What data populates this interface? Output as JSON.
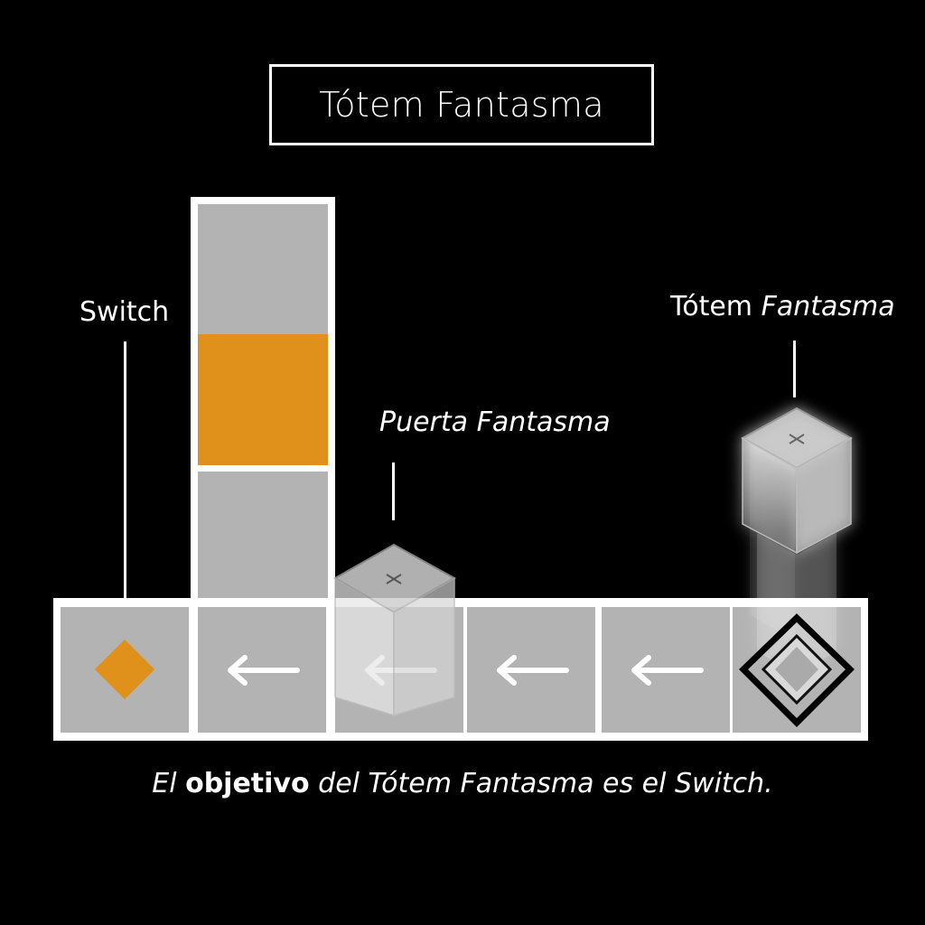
{
  "title": "Tótem Fantasma",
  "labels": {
    "switch": "Switch",
    "puerta_prefix": "",
    "puerta_italic": "Puerta Fantasma",
    "totem_normal": "Tótem ",
    "totem_italic": "Fantasma"
  },
  "caption": {
    "part1": "El ",
    "bold": "objetivo",
    "part2": " del Tótem Fantasma es el Switch."
  },
  "colors": {
    "background": "#000000",
    "tile_gray": "#b3b3b3",
    "accent_orange": "#e0911c",
    "border_white": "#ffffff"
  },
  "tiles": [
    "switch-icon",
    "arrow-left-icon",
    "ghost-door",
    "arrow-left-icon",
    "arrow-left-icon",
    "ghost-totem-target-icon"
  ],
  "tower_cells": [
    "gray",
    "orange",
    "gray"
  ]
}
